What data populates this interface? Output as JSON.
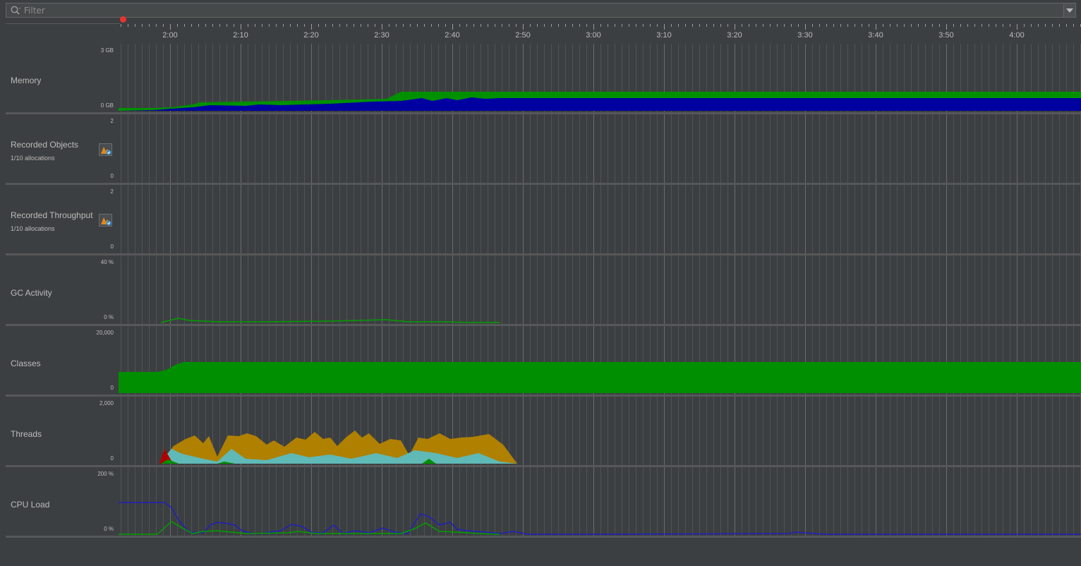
{
  "filter": {
    "placeholder": "Filter",
    "value": ""
  },
  "timeline": {
    "ticks": [
      "2:00",
      "2:10",
      "2:20",
      "2:30",
      "2:40",
      "2:50",
      "3:00",
      "3:10",
      "3:20",
      "3:30",
      "3:40",
      "3:50",
      "4:00"
    ],
    "recording": true
  },
  "rows": [
    {
      "id": "memory",
      "label": "Memory",
      "subtitle": "",
      "axis_max": "3 GB",
      "axis_min": "0 GB",
      "has_icon": false
    },
    {
      "id": "recorded-objects",
      "label": "Recorded Objects",
      "subtitle": "1/10 allocations",
      "axis_max": "2",
      "axis_min": "0",
      "has_icon": true
    },
    {
      "id": "recorded-throughput",
      "label": "Recorded Throughput",
      "subtitle": "1/10 allocations",
      "axis_max": "2",
      "axis_min": "0",
      "has_icon": true
    },
    {
      "id": "gc-activity",
      "label": "GC Activity",
      "subtitle": "",
      "axis_max": "40 %",
      "axis_min": "0 %",
      "has_icon": false
    },
    {
      "id": "classes",
      "label": "Classes",
      "subtitle": "",
      "axis_max": "20,000",
      "axis_min": "0",
      "has_icon": false
    },
    {
      "id": "threads",
      "label": "Threads",
      "subtitle": "",
      "axis_max": "2,000",
      "axis_min": "0",
      "has_icon": false
    },
    {
      "id": "cpu-load",
      "label": "CPU Load",
      "subtitle": "",
      "axis_max": "200 %",
      "axis_min": "0 %",
      "has_icon": false
    }
  ],
  "colors": {
    "background": "#3c3f41",
    "gridline": "#5a5d60",
    "memory_used": "#0000a0",
    "memory_free": "#009000",
    "classes": "#008f00",
    "threads_total": "#b08000",
    "threads_daemon": "#5fb9b6",
    "threads_blocked": "#b00000",
    "threads_waiting": "#009000",
    "cpu_process": "#1f1fbf",
    "cpu_gc": "#00a000",
    "record_dot": "#e5342f"
  },
  "icons": {
    "filter": "search-icon",
    "dropdown": "chevron-down-icon",
    "alloc": "allocation-recording-icon"
  }
}
